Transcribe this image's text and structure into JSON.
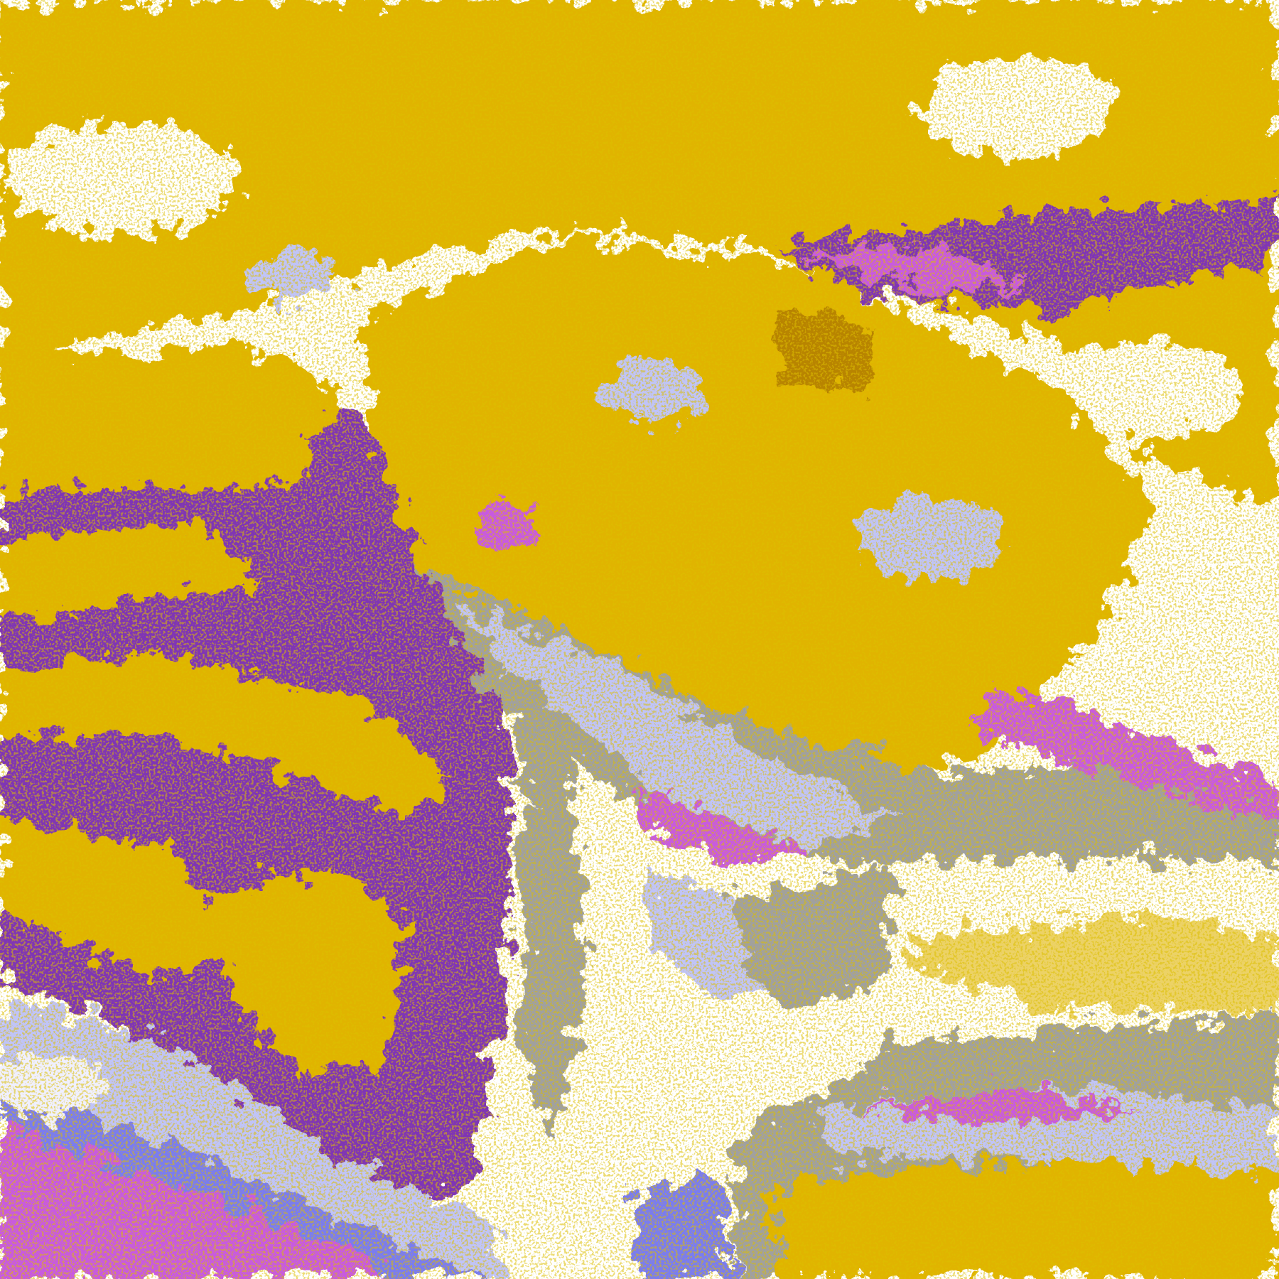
{
  "map": {
    "type": "satellite cloud-classification image",
    "colors": {
      "clear": "#ffffff",
      "gold": "#e0b400",
      "dark_gold": "#b88400",
      "gray": "#a0a0a0",
      "purple": "#7f35b5",
      "magenta": "#c85ae0",
      "blue": "#7a7cf0",
      "lavender": "#c0c4f8",
      "pale": "#f0f0ff"
    }
  }
}
